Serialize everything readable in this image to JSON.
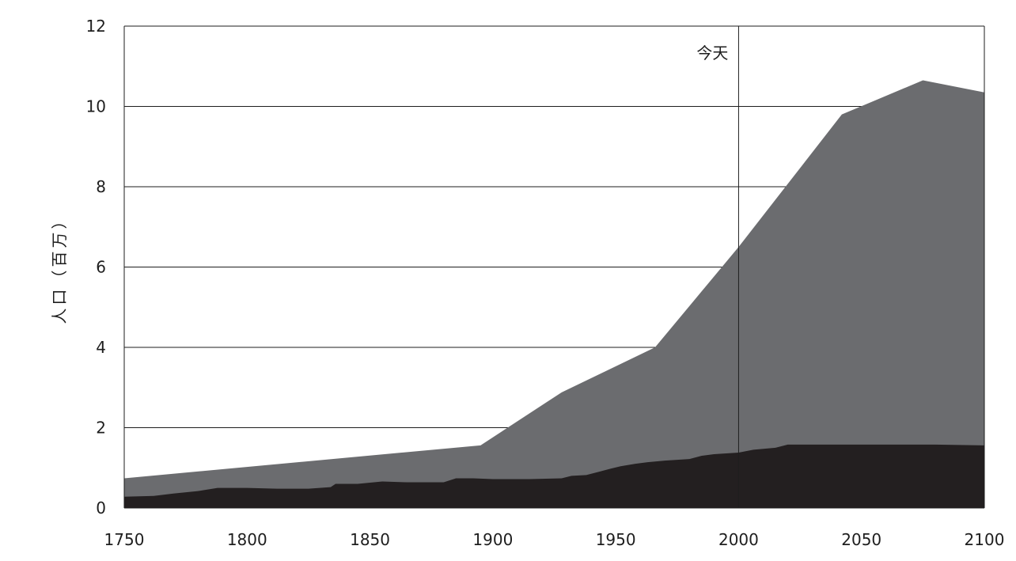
{
  "chart_data": {
    "type": "area",
    "title": "",
    "xlabel": "",
    "ylabel": "人口（百万）",
    "xlim": [
      1750,
      2100
    ],
    "ylim": [
      0,
      12
    ],
    "x_ticks": [
      "1750",
      "1800",
      "1850",
      "1900",
      "1950",
      "2000",
      "2050",
      "2100"
    ],
    "y_ticks": [
      "0",
      "2",
      "4",
      "6",
      "8",
      "10",
      "12"
    ],
    "grid": "horizontal",
    "annotation": {
      "label": "今天",
      "x": 2000
    },
    "colors": {
      "upper": "#6b6c6f",
      "lower": "#231f20",
      "grid": "#1e1e1e"
    },
    "series": [
      {
        "x": [
          1750,
          1895,
          1928,
          1966,
          2000,
          2042,
          2075,
          2100
        ],
        "values": [
          0.74,
          1.56,
          2.88,
          4.0,
          6.5,
          9.8,
          10.65,
          10.35
        ]
      },
      {
        "x": [
          1750,
          1762,
          1770,
          1780,
          1788,
          1800,
          1812,
          1825,
          1834,
          1836,
          1845,
          1855,
          1865,
          1880,
          1885,
          1892,
          1900,
          1915,
          1928,
          1932,
          1938,
          1943,
          1948,
          1952,
          1958,
          1963,
          1970,
          1980,
          1985,
          1990,
          2000,
          2006,
          2015,
          2020,
          2030,
          2050,
          2080,
          2100
        ],
        "values": [
          0.28,
          0.3,
          0.36,
          0.42,
          0.5,
          0.5,
          0.48,
          0.48,
          0.52,
          0.6,
          0.6,
          0.66,
          0.64,
          0.64,
          0.74,
          0.74,
          0.72,
          0.72,
          0.74,
          0.8,
          0.82,
          0.9,
          0.98,
          1.04,
          1.1,
          1.14,
          1.18,
          1.22,
          1.3,
          1.34,
          1.38,
          1.45,
          1.5,
          1.58,
          1.58,
          1.58,
          1.58,
          1.56
        ]
      }
    ]
  }
}
